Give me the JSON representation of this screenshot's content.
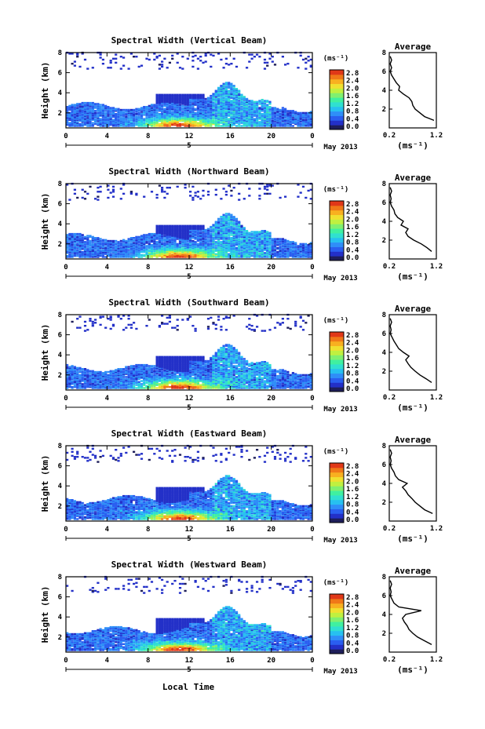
{
  "figure": {
    "x_axis_label": "Local Time",
    "date_label": "May 2013",
    "day_label": "5",
    "colorbar_unit": "(ms⁻¹)",
    "avg_xlabel": "(ms⁻¹)"
  },
  "colorscale": [
    "#1e1e5a",
    "#2330c8",
    "#2a5ef0",
    "#2f8ef8",
    "#27c0f0",
    "#30e0d0",
    "#40f0a0",
    "#80f070",
    "#c0f040",
    "#f0e030",
    "#f8b020",
    "#f07818",
    "#e03818"
  ],
  "chart_data": [
    {
      "type": "heatmap",
      "title": "Spectral Width (Vertical Beam)",
      "ylabel": "Height (km)",
      "x_ticks": [
        "0",
        "4",
        "8",
        "12",
        "16",
        "20",
        "0"
      ],
      "y_ticks": [
        "2",
        "4",
        "6",
        "8"
      ],
      "xlim": [
        0,
        24
      ],
      "ylim": [
        0.5,
        8
      ],
      "colorbar": {
        "ticks": [
          "0.0",
          "0.4",
          "0.8",
          "1.2",
          "1.6",
          "2.0",
          "2.4",
          "2.8"
        ],
        "range": [
          0,
          2.8
        ]
      },
      "average_profile": {
        "title": "Average",
        "xlim": [
          0.2,
          1.2
        ],
        "ylim": [
          0,
          8
        ],
        "x_ticks": [
          "0.2",
          "1.2"
        ],
        "y_ticks": [
          "2",
          "4",
          "6",
          "8"
        ],
        "height": [
          0.8,
          1.2,
          1.6,
          2.0,
          2.4,
          2.8,
          3.2,
          3.6,
          4.0,
          4.4,
          4.8,
          5.2,
          5.6,
          6.0,
          6.4,
          6.8,
          7.2,
          7.6
        ],
        "width": [
          1.15,
          0.95,
          0.85,
          0.75,
          0.7,
          0.68,
          0.62,
          0.5,
          0.4,
          0.42,
          0.35,
          0.3,
          0.25,
          0.22,
          0.25,
          0.22,
          0.25,
          0.22
        ]
      }
    },
    {
      "type": "heatmap",
      "title": "Spectral Width (Northward Beam)",
      "ylabel": "Height (km)",
      "x_ticks": [
        "0",
        "4",
        "8",
        "12",
        "16",
        "20",
        "0"
      ],
      "y_ticks": [
        "2",
        "4",
        "6",
        "8"
      ],
      "xlim": [
        0,
        24
      ],
      "ylim": [
        0.5,
        8
      ],
      "colorbar": {
        "ticks": [
          "0.0",
          "0.4",
          "0.8",
          "1.2",
          "1.6",
          "2.0",
          "2.4",
          "2.8"
        ],
        "range": [
          0,
          2.8
        ]
      },
      "average_profile": {
        "title": "Average",
        "xlim": [
          0.2,
          1.2
        ],
        "ylim": [
          0,
          8
        ],
        "x_ticks": [
          "0.2",
          "1.2"
        ],
        "y_ticks": [
          "2",
          "4",
          "6",
          "8"
        ],
        "height": [
          0.8,
          1.2,
          1.6,
          2.0,
          2.4,
          2.8,
          3.2,
          3.6,
          4.0,
          4.4,
          4.8,
          5.2,
          5.6,
          6.0,
          6.4,
          6.8,
          7.2,
          7.6
        ],
        "width": [
          1.1,
          1.0,
          0.88,
          0.72,
          0.6,
          0.55,
          0.6,
          0.45,
          0.5,
          0.38,
          0.32,
          0.3,
          0.25,
          0.22,
          0.24,
          0.22,
          0.25,
          0.22
        ]
      }
    },
    {
      "type": "heatmap",
      "title": "Spectral Width (Southward Beam)",
      "ylabel": "Height (km)",
      "x_ticks": [
        "0",
        "4",
        "8",
        "12",
        "16",
        "20",
        "0"
      ],
      "y_ticks": [
        "2",
        "4",
        "6",
        "8"
      ],
      "xlim": [
        0,
        24
      ],
      "ylim": [
        0.5,
        8
      ],
      "colorbar": {
        "ticks": [
          "0.0",
          "0.4",
          "0.8",
          "1.2",
          "1.6",
          "2.0",
          "2.4",
          "2.8"
        ],
        "range": [
          0,
          2.8
        ]
      },
      "average_profile": {
        "title": "Average",
        "xlim": [
          0.2,
          1.2
        ],
        "ylim": [
          0,
          8
        ],
        "x_ticks": [
          "0.2",
          "1.2"
        ],
        "y_ticks": [
          "2",
          "4",
          "6",
          "8"
        ],
        "height": [
          0.8,
          1.2,
          1.6,
          2.0,
          2.4,
          2.8,
          3.2,
          3.6,
          4.0,
          4.4,
          4.8,
          5.2,
          5.6,
          6.0,
          6.4,
          6.8,
          7.2,
          7.6
        ],
        "width": [
          1.1,
          0.98,
          0.85,
          0.75,
          0.66,
          0.6,
          0.55,
          0.62,
          0.5,
          0.4,
          0.35,
          0.3,
          0.26,
          0.22,
          0.24,
          0.22,
          0.25,
          0.22
        ]
      }
    },
    {
      "type": "heatmap",
      "title": "Spectral Width (Eastward Beam)",
      "ylabel": "Height (km)",
      "x_ticks": [
        "0",
        "4",
        "8",
        "12",
        "16",
        "20",
        "0"
      ],
      "y_ticks": [
        "2",
        "4",
        "6",
        "8"
      ],
      "xlim": [
        0,
        24
      ],
      "ylim": [
        0.5,
        8
      ],
      "colorbar": {
        "ticks": [
          "0.0",
          "0.4",
          "0.8",
          "1.2",
          "1.6",
          "2.0",
          "2.4",
          "2.8"
        ],
        "range": [
          0,
          2.8
        ]
      },
      "average_profile": {
        "title": "Average",
        "xlim": [
          0.2,
          1.2
        ],
        "ylim": [
          0,
          8
        ],
        "x_ticks": [
          "0.2",
          "1.2"
        ],
        "y_ticks": [
          "2",
          "4",
          "6",
          "8"
        ],
        "height": [
          0.8,
          1.2,
          1.6,
          2.0,
          2.4,
          2.8,
          3.2,
          3.6,
          4.0,
          4.4,
          4.8,
          5.2,
          5.6,
          6.0,
          6.4,
          6.8,
          7.2,
          7.6
        ],
        "width": [
          1.12,
          0.95,
          0.85,
          0.75,
          0.68,
          0.6,
          0.55,
          0.48,
          0.58,
          0.4,
          0.33,
          0.3,
          0.25,
          0.22,
          0.24,
          0.22,
          0.25,
          0.22
        ]
      }
    },
    {
      "type": "heatmap",
      "title": "Spectral Width (Westward Beam)",
      "ylabel": "Height (km)",
      "x_ticks": [
        "0",
        "4",
        "8",
        "12",
        "16",
        "20",
        "0"
      ],
      "y_ticks": [
        "2",
        "4",
        "6",
        "8"
      ],
      "xlim": [
        0,
        24
      ],
      "ylim": [
        0.5,
        8
      ],
      "colorbar": {
        "ticks": [
          "0.0",
          "0.4",
          "0.8",
          "1.2",
          "1.6",
          "2.0",
          "2.4",
          "2.8"
        ],
        "range": [
          0,
          2.8
        ]
      },
      "average_profile": {
        "title": "Average",
        "xlim": [
          0.2,
          1.2
        ],
        "ylim": [
          0,
          8
        ],
        "x_ticks": [
          "0.2",
          "1.2"
        ],
        "y_ticks": [
          "2",
          "4",
          "6",
          "8"
        ],
        "height": [
          0.8,
          1.2,
          1.6,
          2.0,
          2.4,
          2.8,
          3.2,
          3.6,
          4.0,
          4.4,
          4.8,
          5.2,
          5.6,
          6.0,
          6.4,
          6.8,
          7.2,
          7.6
        ],
        "width": [
          1.1,
          0.95,
          0.8,
          0.7,
          0.62,
          0.58,
          0.52,
          0.48,
          0.55,
          0.88,
          0.4,
          0.3,
          0.26,
          0.22,
          0.24,
          0.22,
          0.25,
          0.22
        ]
      }
    }
  ]
}
